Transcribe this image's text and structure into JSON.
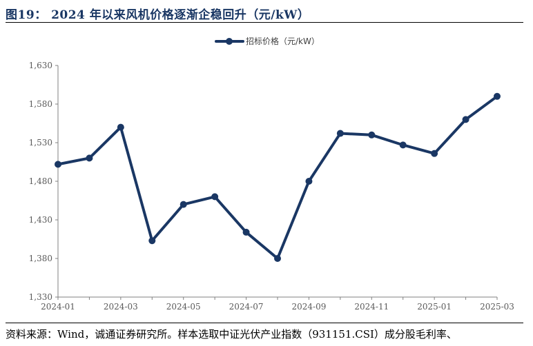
{
  "figure": {
    "title": "图19：   2024 年以来风机价格逐渐企稳回升（元/kW）",
    "source": "资料来源：Wind，诚通证券研究所。样本选取中证光伏产业指数（931151.CSI）成分股毛利率、"
  },
  "chart_data": {
    "type": "line",
    "title": "",
    "xlabel": "",
    "ylabel": "",
    "ylim": [
      1330,
      1630
    ],
    "yticks": [
      1330,
      1380,
      1430,
      1480,
      1530,
      1580,
      1630
    ],
    "ytick_labels": [
      "1,330",
      "1,380",
      "1,430",
      "1,480",
      "1,530",
      "1,580",
      "1,630"
    ],
    "x": [
      "2024-01",
      "2024-02",
      "2024-03",
      "2024-04",
      "2024-05",
      "2024-06",
      "2024-07",
      "2024-08",
      "2024-09",
      "2024-10",
      "2024-11",
      "2024-12",
      "2025-01",
      "2025-02",
      "2025-03"
    ],
    "xtick_labels": [
      "2024-01",
      "2024-03",
      "2024-05",
      "2024-07",
      "2024-09",
      "2024-11",
      "2025-01",
      "2025-03"
    ],
    "series": [
      {
        "name": "招标价格（元/kW）",
        "color": "#1a3764",
        "values": [
          1502,
          1510,
          1550,
          1403,
          1450,
          1460,
          1414,
          1380,
          1480,
          1542,
          1540,
          1527,
          1516,
          1560,
          1590
        ]
      }
    ],
    "legend_position": "top-center",
    "grid": false
  }
}
